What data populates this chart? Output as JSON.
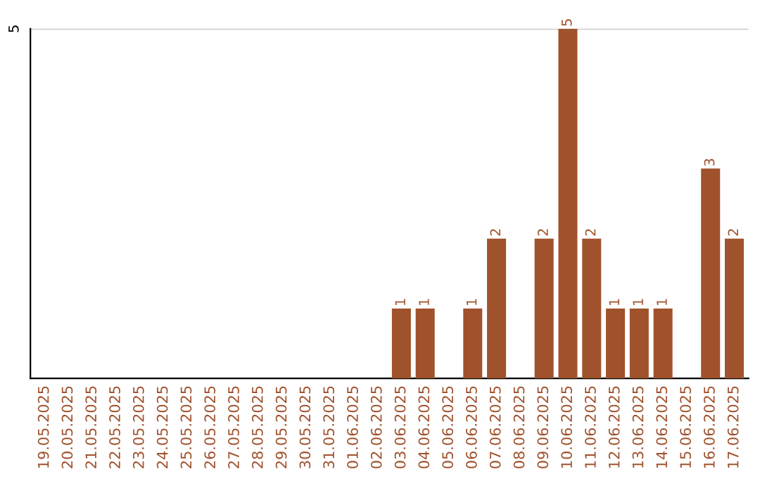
{
  "chart_data": {
    "type": "bar",
    "categories": [
      "19.05.2025",
      "20.05.2025",
      "21.05.2025",
      "22.05.2025",
      "23.05.2025",
      "24.05.2025",
      "25.05.2025",
      "26.05.2025",
      "27.05.2025",
      "28.05.2025",
      "29.05.2025",
      "30.05.2025",
      "31.05.2025",
      "01.06.2025",
      "02.06.2025",
      "03.06.2025",
      "04.06.2025",
      "05.06.2025",
      "06.06.2025",
      "07.06.2025",
      "08.06.2025",
      "09.06.2025",
      "10.06.2025",
      "11.06.2025",
      "12.06.2025",
      "13.06.2025",
      "14.06.2025",
      "15.06.2025",
      "16.06.2025",
      "17.06.2025"
    ],
    "values": [
      null,
      null,
      null,
      null,
      null,
      null,
      null,
      null,
      null,
      null,
      null,
      null,
      null,
      null,
      null,
      1,
      1,
      null,
      1,
      2,
      null,
      2,
      5,
      2,
      1,
      1,
      1,
      null,
      3,
      2
    ],
    "value_labels": [
      null,
      null,
      null,
      null,
      null,
      null,
      null,
      null,
      null,
      null,
      null,
      null,
      null,
      null,
      null,
      "1",
      "1",
      null,
      "1",
      "2",
      null,
      "2",
      "5",
      "2",
      "1",
      "1",
      "1",
      null,
      "3",
      "2"
    ],
    "color": "#a0522d",
    "ref_lines": [
      {
        "axis": "y",
        "value": 5,
        "label": "5",
        "color": "#cccccc"
      }
    ],
    "legend": false
  }
}
